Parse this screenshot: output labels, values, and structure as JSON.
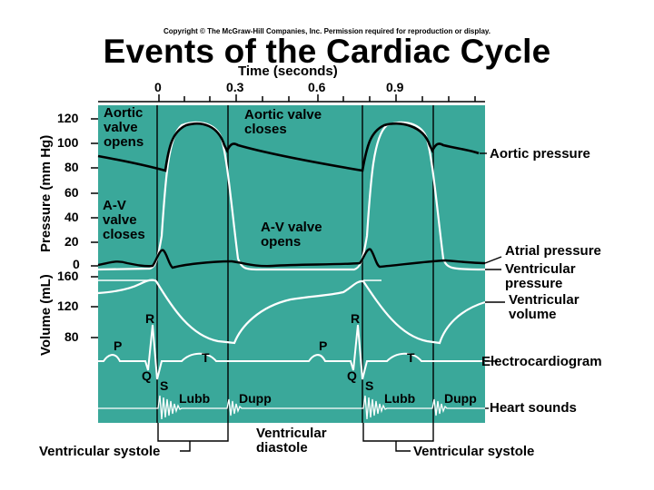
{
  "header": {
    "copyright": "Copyright © The McGraw-Hill Companies, Inc. Permission required for reproduction or display.",
    "title": "Events of the Cardiac Cycle"
  },
  "time_axis": {
    "label": "Time (seconds)",
    "ticks": [
      "0",
      "0.3",
      "0.6",
      "0.9"
    ]
  },
  "pressure_axis": {
    "label": "Pressure (mm Hg)",
    "ticks": [
      "120",
      "100",
      "80",
      "60",
      "40",
      "20",
      "0"
    ]
  },
  "volume_axis": {
    "label": "Volume (mL)",
    "ticks": [
      "160",
      "120",
      "80"
    ]
  },
  "events": {
    "aortic_opens": "Aortic\nvalve\nopens",
    "aortic_closes": "Aortic valve\ncloses",
    "av_closes": "A-V\nvalve\ncloses",
    "av_opens": "A-V valve\nopens"
  },
  "traces": {
    "aortic_pressure": "Aortic pressure",
    "atrial_pressure": "Atrial pressure",
    "ventricular_pressure": "Ventricular\npressure",
    "ventricular_volume": "Ventricular\nvolume",
    "ecg": "Electrocardiogram",
    "heart_sounds": "Heart sounds"
  },
  "ecg_waves": {
    "p": "P",
    "r": "R",
    "q": "Q",
    "s": "S",
    "t": "T"
  },
  "sounds": {
    "lubb": "Lubb",
    "dupp": "Dupp"
  },
  "phases": {
    "systole": "Ventricular systole",
    "diastole": "Ventricular\ndiastole"
  },
  "colors": {
    "panel": "#3aa89a",
    "white_trace": "#ffffff",
    "black_trace": "#000000"
  }
}
